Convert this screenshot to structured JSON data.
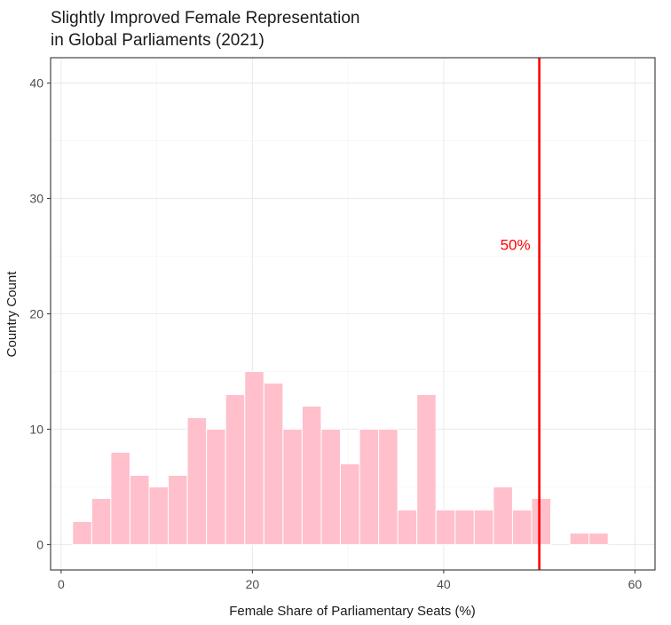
{
  "chart_data": {
    "type": "histogram",
    "title": [
      "Slightly Improved Female Representation",
      "in Global Parliaments (2021)"
    ],
    "xlabel": "Female Share of Parliamentary Seats (%)",
    "ylabel": "Country Count",
    "xlim": [
      -1.1,
      62.1
    ],
    "ylim": [
      -2.2,
      42.2
    ],
    "x_ticks": [
      0,
      20,
      40,
      60
    ],
    "x_tick_labels": [
      "0",
      "20",
      "40",
      "60"
    ],
    "y_ticks": [
      0,
      10,
      20,
      30,
      40
    ],
    "y_tick_labels": [
      "0",
      "10",
      "20",
      "30",
      "40"
    ],
    "bin_width": 2.0,
    "bin_centers": [
      2.2,
      4.2,
      6.2,
      8.2,
      10.2,
      12.2,
      14.2,
      16.2,
      18.2,
      20.2,
      22.2,
      24.2,
      26.2,
      28.2,
      30.2,
      32.2,
      34.2,
      36.2,
      38.2,
      40.2,
      42.2,
      44.2,
      46.2,
      48.2,
      50.2,
      52.2,
      54.2,
      56.2
    ],
    "counts": [
      2,
      4,
      8,
      6,
      5,
      6,
      11,
      10,
      13,
      15,
      14,
      10,
      12,
      10,
      7,
      10,
      10,
      3,
      13,
      3,
      3,
      3,
      5,
      3,
      4,
      0,
      1,
      1
    ],
    "reference_line": {
      "x": 50,
      "label": "50%",
      "label_y": 26,
      "color": "#ff0000"
    },
    "bar_fill": "#ffc0cb",
    "bar_outline": "#ffffff",
    "grid": true
  }
}
